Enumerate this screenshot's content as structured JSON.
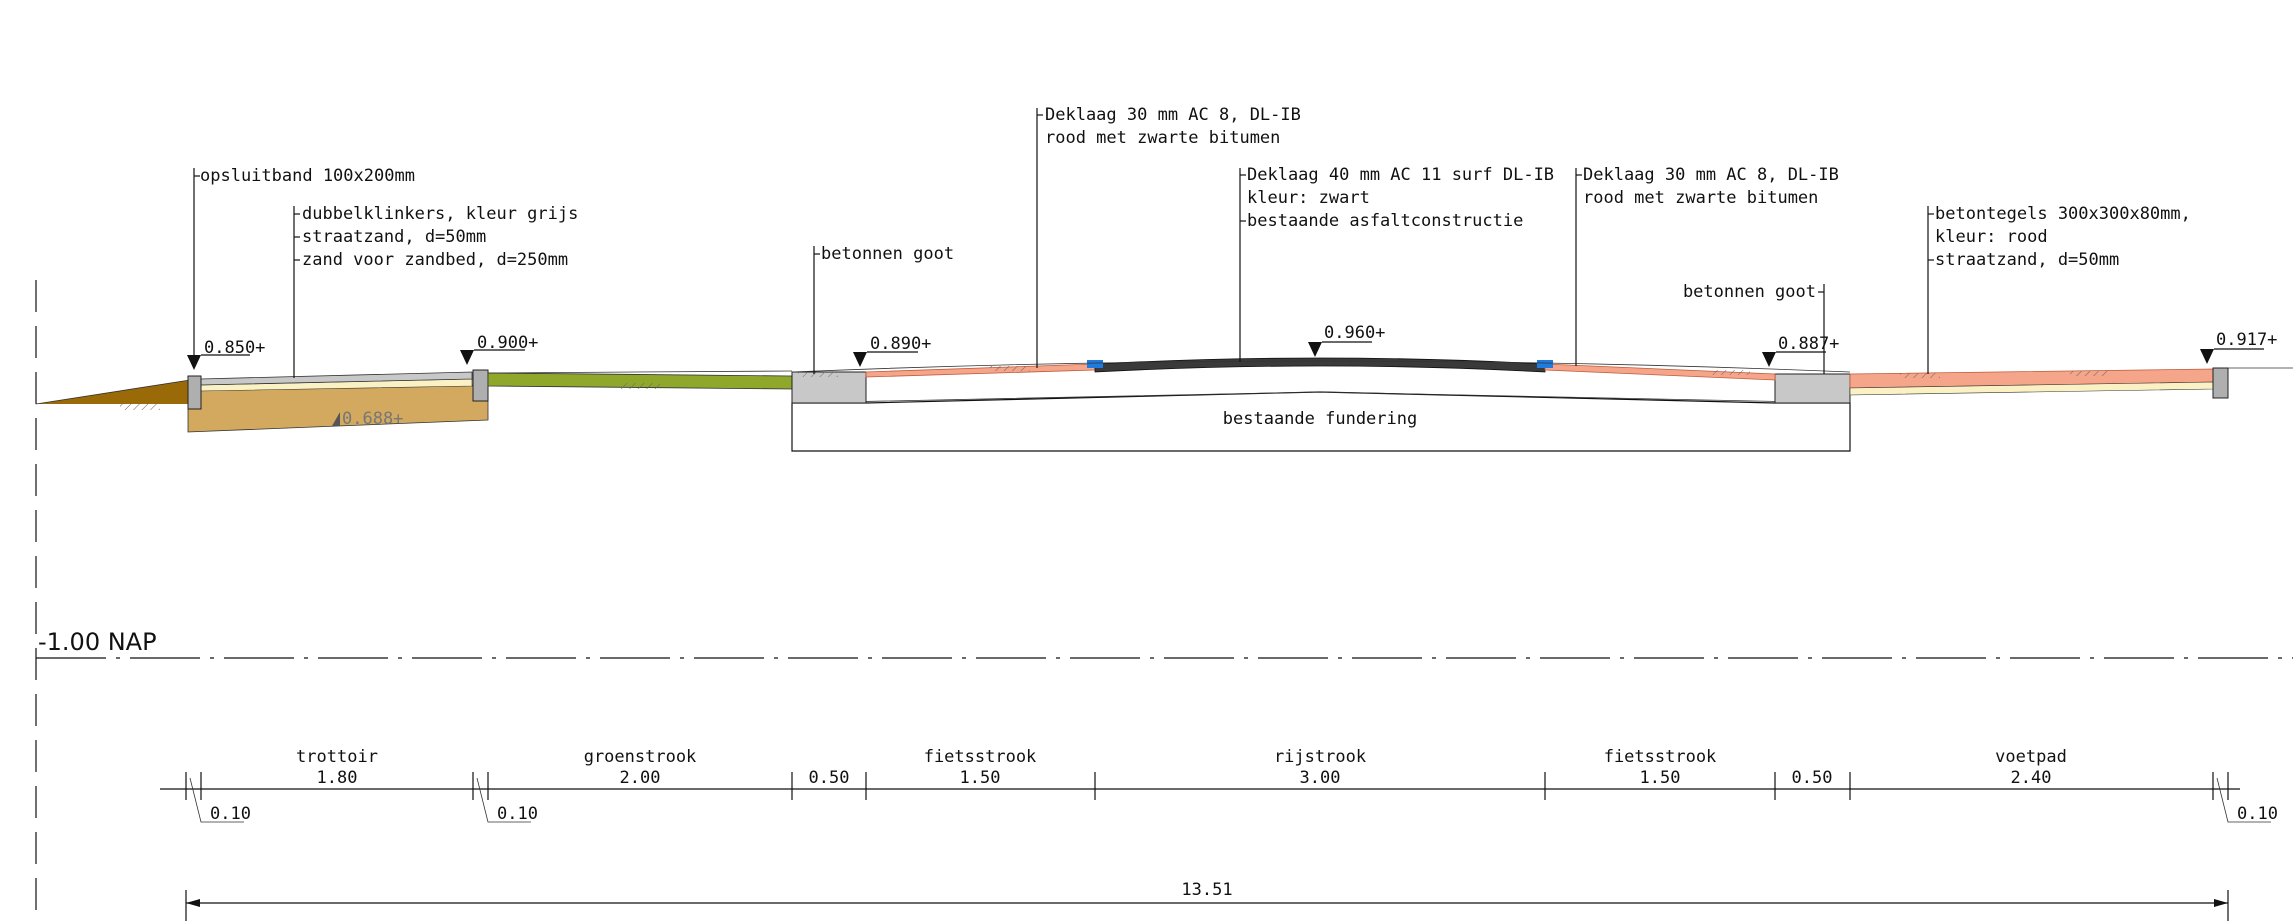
{
  "colors": {
    "brick_red": "#F4A58A",
    "brick_edge": "#C05A3A",
    "sand_light": "#FAF2C4",
    "sand_bed": "#D2A95E",
    "pavers_grey": "#C8C8C8",
    "grass": "#8FA82C",
    "soil_brown": "#9A6A08",
    "asphalt_black": "#3A3A3A",
    "marker_blue": "#1E7BE0",
    "concrete_grey": "#C8C8C8"
  },
  "datum": {
    "label": "-1.00 NAP"
  },
  "levels": [
    {
      "label": "0.850+"
    },
    {
      "label": "0.900+"
    },
    {
      "label": "0.890+"
    },
    {
      "label": "0.960+"
    },
    {
      "label": "0.887+"
    },
    {
      "label": "0.917+"
    },
    {
      "label": "0.688+"
    }
  ],
  "annotations": {
    "opsluitband": "opsluitband 100x200mm",
    "klinkers": [
      "dubbelklinkers, kleur grijs",
      "straatzand, d=50mm",
      "zand voor zandbed, d=250mm"
    ],
    "goot_left": "betonnen goot",
    "deklaag_left": [
      "Deklaag 30 mm AC 8, DL-IB",
      "rood met zwarte bitumen"
    ],
    "deklaag_mid": [
      "Deklaag 40 mm AC 11 surf DL-IB",
      "kleur: zwart",
      "bestaande asfaltconstructie"
    ],
    "deklaag_right": [
      "Deklaag 30 mm AC 8, DL-IB",
      "rood met zwarte bitumen"
    ],
    "goot_right": "betonnen goot",
    "tegels": [
      "betontegels 300x300x80mm,",
      "kleur: rood",
      "straatzand, d=50mm"
    ],
    "fundering": "bestaande fundering"
  },
  "dimensions": {
    "segments": [
      {
        "name": "trottoir",
        "value": "1.80"
      },
      {
        "name": "groenstrook",
        "value": "2.00"
      },
      {
        "name": "",
        "value": "0.50"
      },
      {
        "name": "fietsstrook",
        "value": "1.50"
      },
      {
        "name": "rijstrook",
        "value": "3.00"
      },
      {
        "name": "fietsstrook",
        "value": "1.50"
      },
      {
        "name": "",
        "value": "0.50"
      },
      {
        "name": "voetpad",
        "value": "2.40"
      }
    ],
    "small": [
      "0.10",
      "0.10",
      "0.10"
    ],
    "total": "13.51"
  }
}
